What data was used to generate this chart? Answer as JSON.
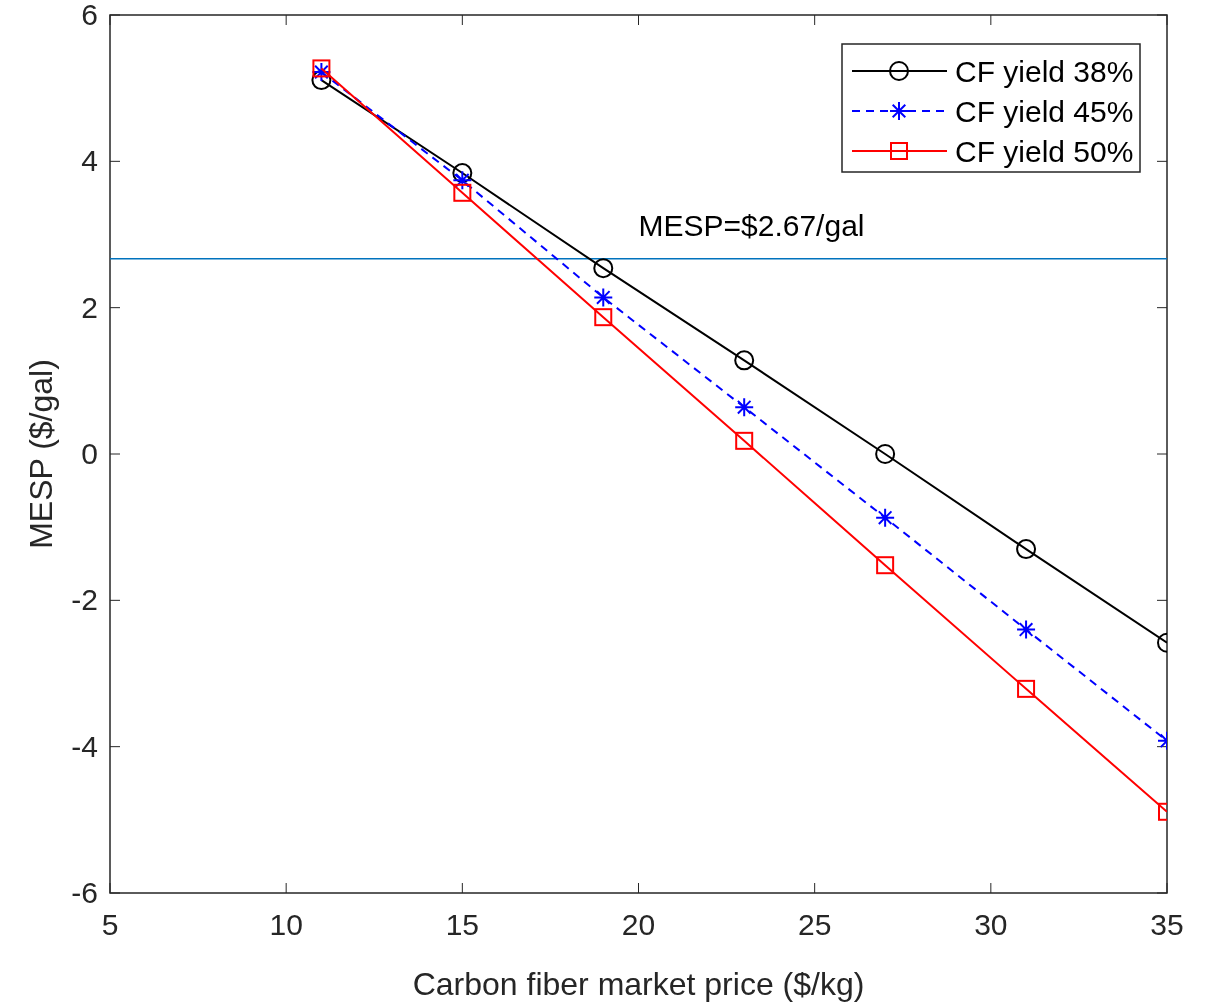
{
  "chart_data": {
    "type": "line",
    "xlabel": "Carbon fiber market price ($/kg)",
    "ylabel": "MESP ($/gal)",
    "x": [
      11,
      15,
      19,
      23,
      27,
      31,
      35
    ],
    "xlim": [
      5,
      35
    ],
    "xticks": [
      5,
      10,
      15,
      20,
      25,
      30,
      35
    ],
    "ylim": [
      -6,
      6
    ],
    "yticks": [
      -6,
      -4,
      -2,
      0,
      2,
      4,
      6
    ],
    "grid": false,
    "legend": "top right",
    "series": [
      {
        "name": "CF yield 38%",
        "color": "#000000",
        "marker": "circle",
        "line_style": "solid",
        "values": [
          5.11,
          3.84,
          2.54,
          1.28,
          0,
          -1.3,
          -2.58
        ]
      },
      {
        "name": "CF yield 45%",
        "color": "#0000ff",
        "marker": "cross",
        "line_style": "dashed",
        "values": [
          5.22,
          3.74,
          2.14,
          0.64,
          -0.87,
          -2.4,
          -3.92
        ]
      },
      {
        "name": "CF yield 50%",
        "color": "#ff0000",
        "marker": "square",
        "line_style": "solid",
        "values": [
          5.27,
          3.57,
          1.87,
          0.18,
          -1.52,
          -3.21,
          -4.89
        ]
      }
    ],
    "ref_lines": [
      {
        "axis": "y",
        "value": 2.67,
        "label": "MESP=$2.67/gal",
        "color": "#0072bd"
      }
    ]
  }
}
